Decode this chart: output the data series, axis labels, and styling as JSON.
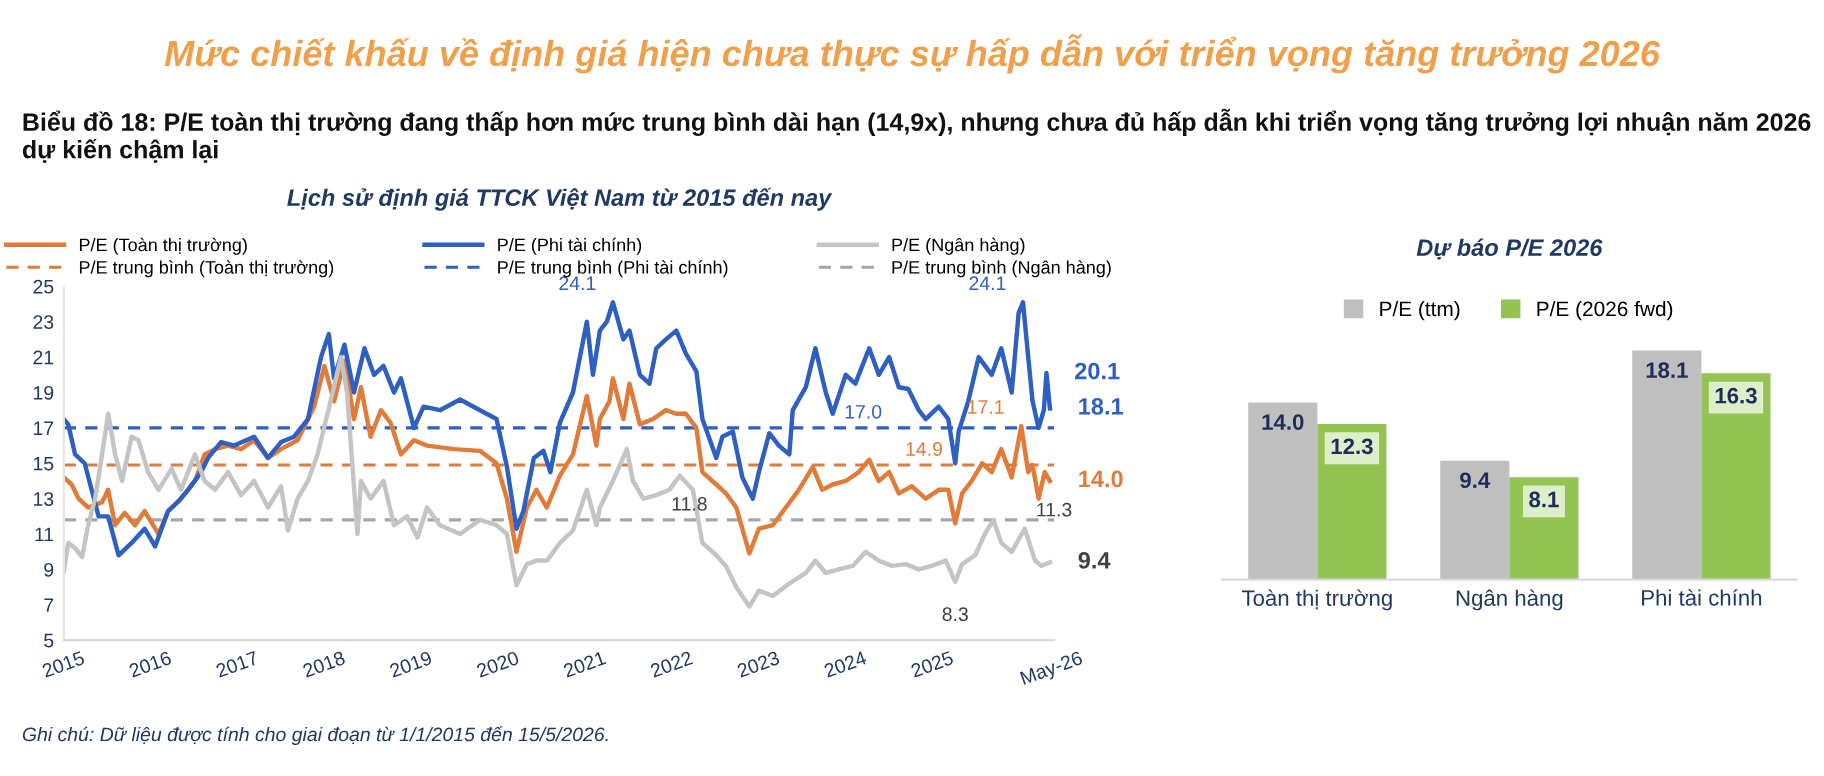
{
  "chart_data": [
    {
      "type": "line",
      "title": "Lịch sử định giá TTCK Việt Nam từ 2015 đến nay",
      "annotations": [
        "Mức chiết khấu về định giá hiện chưa thực sự hấp dẫn với triển vọng tăng trưởng 2026",
        "Biểu đồ 18: P/E toàn thị trường đang thấp hơn mức trung bình dài hạn (14,9x), nhưng chưa đủ hấp dẫn khi triển vọng tăng trưởng lợi nhuận năm 2026 dự kiến chậm lại",
        "Ghi chú: Dữ liệu được tính cho giai đoạn từ 1/1/2015 đến 15/5/2026.",
        {
          "text": "24.1",
          "x": 2021.32,
          "y": 24.1
        },
        {
          "text": "24.1",
          "x": 2026.04,
          "y": 24.1
        },
        {
          "text": "20.1",
          "x": 2026.31,
          "y": 20.1
        },
        {
          "text": "18.1",
          "x": 2026.35,
          "y": 18.1
        },
        {
          "text": "17.1",
          "x": 2026.02,
          "y": 17.1
        },
        {
          "text": "14.0",
          "x": 2026.35,
          "y": 14.0
        },
        {
          "text": "11.3",
          "x": 2026.06,
          "y": 11.3
        },
        {
          "text": "9.4",
          "x": 2026.35,
          "y": 9.4
        },
        {
          "text": "8.3",
          "x": 2025.26,
          "y": 8.3
        },
        {
          "text": "17.0",
          "x": 2024.2,
          "y": 17.0
        },
        {
          "text": "14.9",
          "x": 2024.9,
          "y": 14.9
        },
        {
          "text": "11.8",
          "x": 2022.2,
          "y": 11.8
        }
      ],
      "series": [
        {
          "name": "P/E (Toàn thị trường)",
          "color": "#e07b39",
          "x": [
            2015.0,
            2015.09,
            2015.17,
            2015.28,
            2015.44,
            2015.51,
            2015.59,
            2015.7,
            2015.82,
            2015.93,
            2016.09,
            2016.2,
            2016.35,
            2016.51,
            2016.62,
            2016.74,
            2016.89,
            2017.04,
            2017.19,
            2017.35,
            2017.5,
            2017.69,
            2017.88,
            2018.0,
            2018.11,
            2018.23,
            2018.34,
            2018.42,
            2018.53,
            2018.65,
            2018.76,
            2018.88,
            2019.03,
            2019.18,
            2019.49,
            2019.79,
            2019.98,
            2020.1,
            2020.21,
            2020.33,
            2020.44,
            2020.56,
            2020.71,
            2020.86,
            2021.02,
            2021.13,
            2021.17,
            2021.28,
            2021.32,
            2021.44,
            2021.51,
            2021.63,
            2021.78,
            2021.93,
            2022.05,
            2022.16,
            2022.28,
            2022.35,
            2022.51,
            2022.62,
            2022.74,
            2022.89,
            2023.0,
            2023.16,
            2023.31,
            2023.46,
            2023.62,
            2023.73,
            2023.85,
            2024.0,
            2024.15,
            2024.27,
            2024.38,
            2024.5,
            2024.61,
            2024.76,
            2024.92,
            2025.07,
            2025.18,
            2025.26,
            2025.34,
            2025.45,
            2025.57,
            2025.68,
            2025.79,
            2025.91,
            2026.02,
            2026.1,
            2026.15,
            2026.22,
            2026.29,
            2026.35
          ],
          "values": [
            14.2,
            13.8,
            13,
            12.5,
            12.8,
            13.5,
            11.5,
            12.2,
            11.5,
            12.3,
            11,
            12.3,
            13,
            14,
            15.5,
            15.8,
            16,
            15.8,
            16.3,
            15.3,
            15.8,
            16.3,
            18.2,
            20.5,
            18.5,
            20.8,
            17.5,
            19.3,
            16.5,
            18,
            17.3,
            15.5,
            16.3,
            16,
            15.8,
            15.7,
            15,
            13,
            10,
            12.5,
            13.5,
            12.5,
            14.3,
            15.5,
            18.8,
            16,
            17.5,
            18.5,
            19.8,
            17.5,
            19.5,
            17.2,
            17.5,
            18,
            17.8,
            17.8,
            17,
            14.5,
            13.8,
            13.3,
            12.5,
            9.9,
            11.3,
            11.5,
            12.5,
            13.5,
            14.8,
            13.5,
            13.8,
            14,
            14.5,
            15.2,
            14,
            14.5,
            13.3,
            13.7,
            13,
            13.5,
            13.5,
            11.6,
            13.3,
            14,
            15,
            14.5,
            15.8,
            14.2,
            17.1,
            14.5,
            14.9,
            13,
            14.5,
            14.0
          ]
        },
        {
          "name": "P/E (Phi tài chính)",
          "color": "#2e5fc2",
          "x": [
            2015.0,
            2015.05,
            2015.13,
            2015.24,
            2015.32,
            2015.4,
            2015.51,
            2015.63,
            2015.78,
            2015.93,
            2016.05,
            2016.2,
            2016.31,
            2016.43,
            2016.58,
            2016.66,
            2016.81,
            2016.96,
            2017.19,
            2017.35,
            2017.5,
            2017.65,
            2017.81,
            2017.96,
            2018.05,
            2018.11,
            2018.23,
            2018.34,
            2018.46,
            2018.57,
            2018.68,
            2018.8,
            2018.88,
            2019.03,
            2019.14,
            2019.33,
            2019.56,
            2019.79,
            2019.98,
            2020.1,
            2020.21,
            2020.29,
            2020.41,
            2020.52,
            2020.6,
            2020.71,
            2020.86,
            2021.02,
            2021.09,
            2021.17,
            2021.25,
            2021.32,
            2021.44,
            2021.51,
            2021.63,
            2021.74,
            2021.82,
            2021.93,
            2022.05,
            2022.16,
            2022.28,
            2022.35,
            2022.51,
            2022.58,
            2022.7,
            2022.81,
            2022.93,
            2023.0,
            2023.12,
            2023.23,
            2023.35,
            2023.39,
            2023.54,
            2023.65,
            2023.77,
            2023.85,
            2024.0,
            2024.11,
            2024.27,
            2024.38,
            2024.5,
            2024.61,
            2024.72,
            2024.84,
            2024.92,
            2025.07,
            2025.18,
            2025.26,
            2025.3,
            2025.41,
            2025.53,
            2025.68,
            2025.79,
            2025.91,
            2025.99,
            2026.04,
            2026.1,
            2026.15,
            2026.22,
            2026.28,
            2026.31,
            2026.35
          ],
          "values": [
            17.5,
            17.2,
            15.5,
            15,
            13.5,
            12,
            12,
            9.8,
            10.5,
            11.3,
            10.3,
            12.3,
            12.8,
            13.5,
            14.5,
            15.3,
            16.2,
            16,
            16.5,
            15.3,
            16.2,
            16.5,
            17.5,
            21,
            22.3,
            19.8,
            21.7,
            19,
            21.5,
            20,
            20.5,
            19,
            19.8,
            17,
            18.2,
            18,
            18.6,
            18,
            17.5,
            14.8,
            11.3,
            12.3,
            15.3,
            15.7,
            14.5,
            17.3,
            19,
            23,
            20,
            22.5,
            23,
            24.1,
            22,
            22.5,
            20,
            19.5,
            21.5,
            22,
            22.5,
            21.2,
            20.2,
            17.5,
            15.3,
            16.5,
            16.8,
            14.2,
            13,
            14.5,
            16.7,
            16,
            15.5,
            18,
            19.3,
            21.5,
            19,
            17.8,
            20,
            19.5,
            21.5,
            20,
            21,
            19.3,
            19.2,
            18,
            17.5,
            18.2,
            17.5,
            15,
            16.8,
            18.5,
            21,
            20,
            21.5,
            19,
            23.5,
            24.1,
            21,
            18.5,
            17,
            18,
            20.1,
            18.1
          ]
        },
        {
          "name": "P/E (Ngân hàng)",
          "color": "#c4c4c4",
          "x": [
            2015.0,
            2015.05,
            2015.13,
            2015.21,
            2015.28,
            2015.36,
            2015.44,
            2015.51,
            2015.59,
            2015.67,
            2015.78,
            2015.86,
            2015.97,
            2016.09,
            2016.24,
            2016.35,
            2016.51,
            2016.62,
            2016.74,
            2016.89,
            2017.04,
            2017.19,
            2017.35,
            2017.5,
            2017.58,
            2017.69,
            2017.81,
            2017.92,
            2018.07,
            2018.19,
            2018.26,
            2018.38,
            2018.42,
            2018.53,
            2018.68,
            2018.8,
            2018.95,
            2019.07,
            2019.18,
            2019.33,
            2019.56,
            2019.79,
            2019.98,
            2020.1,
            2020.21,
            2020.33,
            2020.44,
            2020.56,
            2020.71,
            2020.86,
            2021.02,
            2021.13,
            2021.17,
            2021.32,
            2021.48,
            2021.55,
            2021.67,
            2021.82,
            2021.97,
            2022.09,
            2022.24,
            2022.35,
            2022.51,
            2022.62,
            2022.74,
            2022.89,
            2023.0,
            2023.16,
            2023.35,
            2023.54,
            2023.65,
            2023.77,
            2023.92,
            2024.08,
            2024.23,
            2024.38,
            2024.53,
            2024.69,
            2024.84,
            2024.99,
            2025.15,
            2025.26,
            2025.34,
            2025.49,
            2025.6,
            2025.7,
            2025.79,
            2025.91,
            2026.06,
            2026.18,
            2026.25,
            2026.35
          ],
          "values": [
            8.9,
            10.5,
            10.2,
            9.7,
            11.5,
            13,
            15.5,
            17.8,
            15.5,
            14,
            16.5,
            16.3,
            14.5,
            13.5,
            14.7,
            13.5,
            15.5,
            14,
            13.5,
            14.5,
            13.2,
            14,
            12.5,
            13.7,
            11.2,
            13,
            14,
            15.5,
            18.5,
            21,
            19,
            11,
            14,
            13,
            14,
            11.5,
            12,
            10.8,
            12.5,
            11.5,
            11,
            11.8,
            11.5,
            11,
            8.1,
            9.3,
            9.5,
            9.5,
            10.5,
            11.2,
            13.5,
            11.5,
            12.5,
            14,
            15.8,
            14,
            13,
            13.2,
            13.5,
            14.3,
            13.5,
            10.5,
            9.8,
            9.2,
            8,
            6.9,
            7.8,
            7.5,
            8.2,
            8.8,
            9.5,
            8.8,
            9,
            9.2,
            10,
            9.5,
            9.2,
            9.3,
            9.0,
            9.2,
            9.5,
            8.3,
            9.3,
            9.8,
            11,
            11.8,
            10.5,
            10,
            11.3,
            9.5,
            9.2,
            9.4
          ]
        }
      ],
      "ref_lines": [
        {
          "axis": "y",
          "value": 14.9,
          "label": "P/E trung bình (Toàn thị trường)",
          "color": "#e07b39",
          "line_style": "dashed"
        },
        {
          "axis": "y",
          "value": 17.0,
          "label": "P/E trung bình (Phi tài chính)",
          "color": "#2e5fc2",
          "line_style": "dashed"
        },
        {
          "axis": "y",
          "value": 11.8,
          "label": "P/E trung bình (Ngân hàng)",
          "color": "#a6a6a6",
          "line_style": "dashed"
        }
      ],
      "xlim": [
        2015,
        2026.4
      ],
      "xticks": [
        2015,
        2016,
        2017,
        2018,
        2019,
        2020,
        2021,
        2022,
        2023,
        2024,
        2025,
        {
          "value": 2026.37,
          "label": "May-26"
        }
      ],
      "ylim": [
        5,
        25
      ],
      "yticks": [
        5,
        7,
        9,
        11,
        13,
        15,
        17,
        19,
        21,
        23,
        25
      ],
      "grid": false,
      "legend": "top",
      "line_style": "solid"
    },
    {
      "type": "bar",
      "title": "Dự báo P/E 2026",
      "categories": [
        "Toàn thị trường",
        "Ngân hàng",
        "Phi tài chính"
      ],
      "series": [
        {
          "name": "P/E (ttm)",
          "color": "#bfbfbf",
          "values": [
            14.0,
            9.4,
            18.1
          ],
          "value_labels": [
            "14.0",
            "9.4",
            "18.1"
          ]
        },
        {
          "name": "P/E (2026 fwd)",
          "color": "#92c353",
          "values": [
            12.3,
            8.1,
            16.3
          ],
          "value_labels": [
            "12.3",
            "8.1",
            "16.3"
          ]
        }
      ],
      "tick_labels": "x",
      "legend": "top",
      "grid": false
    }
  ]
}
